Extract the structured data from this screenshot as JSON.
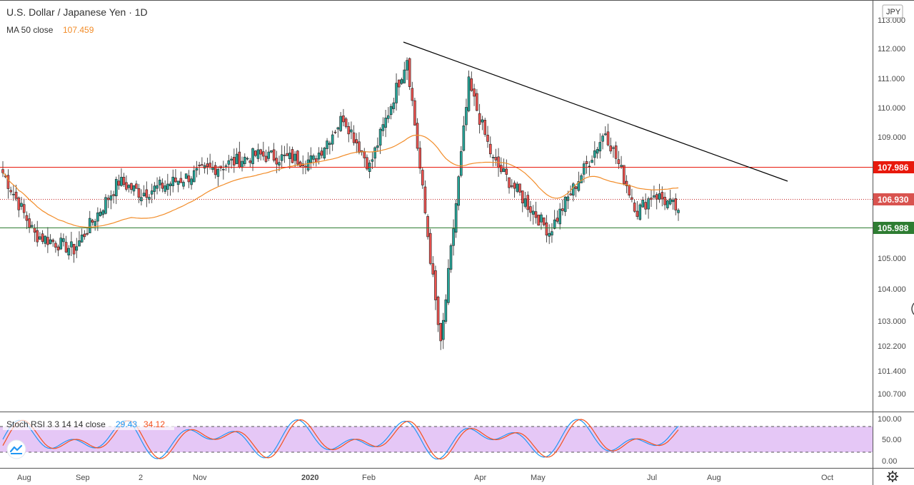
{
  "header": {
    "title": "U.S. Dollar / Japanese Yen · 1D",
    "ma_label": "MA 50 close",
    "ma_value": "107.459",
    "currency_badge": "JPY"
  },
  "oscillator": {
    "label": "Stoch RSI 3 3 14 14 close",
    "k_value": "29.43",
    "d_value": "34.12",
    "ticks": [
      "100.00",
      "50.00",
      "0.00"
    ],
    "upper_band": 80,
    "lower_band": 20
  },
  "price_axis": {
    "ticks": [
      "113.000",
      "112.000",
      "111.000",
      "110.000",
      "109.000",
      "107.986",
      "106.930",
      "105.988",
      "105.000",
      "104.000",
      "103.000",
      "102.200",
      "101.400",
      "100.700"
    ]
  },
  "levels": {
    "resistance": "107.986",
    "last_price": "106.930",
    "support": "105.988"
  },
  "time_axis": {
    "labels": [
      "Aug",
      "Sep",
      "2",
      "Nov",
      "2020",
      "Feb",
      "Apr",
      "May",
      "Jul",
      "Aug",
      "Oct"
    ]
  },
  "colors": {
    "up": "#26a69a",
    "down": "#ef5350",
    "ma": "#f28c28",
    "resistance": "#e8190c",
    "support": "#2e7d32",
    "last": "#c62828",
    "k_line": "#2196f3",
    "d_line": "#f4511e",
    "band_fill": "#e1bdf5"
  },
  "icons": {
    "settings": "gear-icon",
    "logo": "tradingview-logo-icon"
  },
  "chart_data": {
    "type": "candlestick",
    "title": "U.S. Dollar / Japanese Yen · 1D",
    "ylim": [
      100.4,
      113.2
    ],
    "date_range": [
      "2019-07-19",
      "2020-07-14"
    ],
    "key_closes": [
      {
        "date": "2019-07-19",
        "value": 108.2
      },
      {
        "date": "2019-08-05",
        "value": 106.1
      },
      {
        "date": "2019-08-26",
        "value": 105.6
      },
      {
        "date": "2019-09-19",
        "value": 107.9
      },
      {
        "date": "2019-10-01",
        "value": 107.5
      },
      {
        "date": "2019-11-01",
        "value": 108.2
      },
      {
        "date": "2019-12-01",
        "value": 108.8
      },
      {
        "date": "2020-01-01",
        "value": 108.6
      },
      {
        "date": "2020-01-17",
        "value": 110.1
      },
      {
        "date": "2020-01-31",
        "value": 108.4
      },
      {
        "date": "2020-02-20",
        "value": 112.1
      },
      {
        "date": "2020-03-09",
        "value": 102.3
      },
      {
        "date": "2020-03-24",
        "value": 111.2
      },
      {
        "date": "2020-04-06",
        "value": 108.6
      },
      {
        "date": "2020-05-06",
        "value": 106.2
      },
      {
        "date": "2020-06-05",
        "value": 109.6
      },
      {
        "date": "2020-06-22",
        "value": 106.9
      },
      {
        "date": "2020-07-01",
        "value": 107.5
      },
      {
        "date": "2020-07-14",
        "value": 106.93
      }
    ],
    "ma50_close": 107.459,
    "horizontal_levels": [
      {
        "name": "resistance",
        "value": 107.986
      },
      {
        "name": "last",
        "value": 106.93
      },
      {
        "name": "support",
        "value": 105.988
      }
    ],
    "trendline": [
      {
        "date": "2020-02-20",
        "value": 112.2
      },
      {
        "date": "2020-08-08",
        "value": 108.2
      }
    ]
  }
}
